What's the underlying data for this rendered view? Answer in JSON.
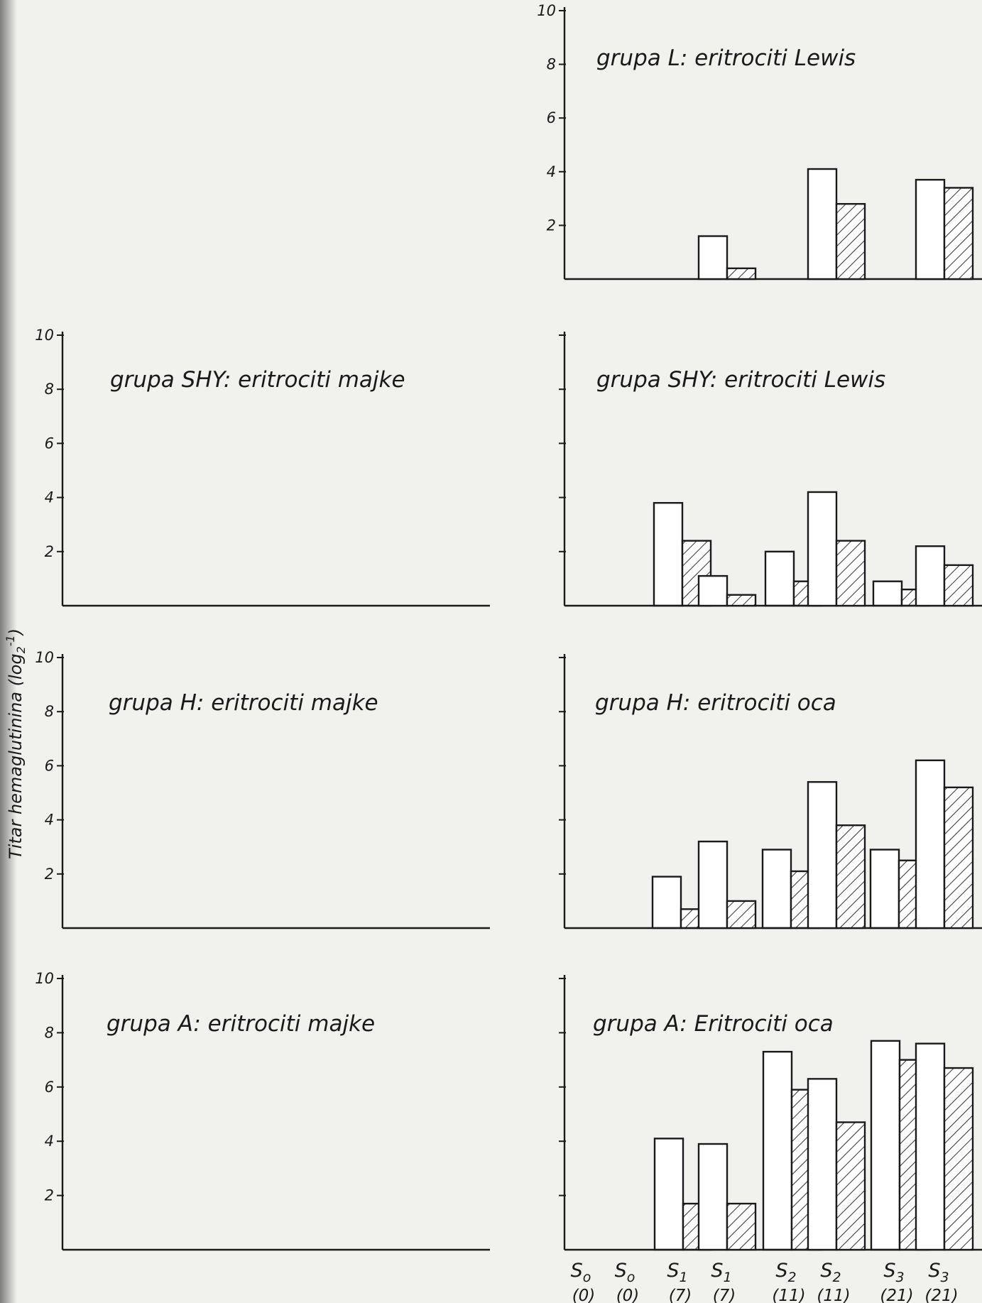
{
  "figure": {
    "ylabel": "Titar hemaglutinina (log",
    "ylabel_sub": "2",
    "ylabel_sup": "-1",
    "ylabel_close": ")"
  },
  "chart_data": [
    {
      "type": "bar",
      "title": "grupa L: eritrociti Lewis",
      "categories": [
        "So (0)",
        "S1 (7)",
        "S2 (11)",
        "S3 (21)"
      ],
      "ylim": [
        0,
        10
      ],
      "yticks": [
        2,
        4,
        6,
        8,
        10
      ],
      "tick_labels_shown": true,
      "series": [
        {
          "style": "open",
          "values": [
            0,
            1.6,
            4.1,
            3.7
          ]
        },
        {
          "style": "hatched",
          "values": [
            0,
            0.4,
            2.8,
            3.4
          ]
        }
      ]
    },
    {
      "type": "bar",
      "title": "grupa SHY: eritrociti majke",
      "categories": [
        "So (0)",
        "S1 (7)",
        "S2 (11)",
        "S3 (21)"
      ],
      "ylim": [
        0,
        10
      ],
      "yticks": [
        2,
        4,
        6,
        8,
        10
      ],
      "tick_labels_shown": true,
      "series": [
        {
          "style": "open",
          "values": [
            0,
            3.8,
            2.0,
            0.9
          ]
        },
        {
          "style": "hatched",
          "values": [
            0,
            2.4,
            0.9,
            0.6
          ]
        }
      ]
    },
    {
      "type": "bar",
      "title": "grupa SHY: eritrociti Lewis",
      "categories": [
        "So (0)",
        "S1 (7)",
        "S2 (11)",
        "S3 (21)"
      ],
      "ylim": [
        0,
        10
      ],
      "yticks": [
        2,
        4,
        6,
        8,
        10
      ],
      "tick_labels_shown": false,
      "series": [
        {
          "style": "open",
          "values": [
            0,
            1.1,
            4.2,
            2.2
          ]
        },
        {
          "style": "hatched",
          "values": [
            0,
            0.4,
            2.4,
            1.5
          ]
        }
      ]
    },
    {
      "type": "bar",
      "title": "grupa H: eritrociti majke",
      "categories": [
        "So (0)",
        "S1 (7)",
        "S2 (11)",
        "S3 (21)"
      ],
      "ylim": [
        0,
        10
      ],
      "yticks": [
        2,
        4,
        6,
        8,
        10
      ],
      "tick_labels_shown": true,
      "series": [
        {
          "style": "open",
          "values": [
            0,
            1.9,
            2.9,
            2.9
          ]
        },
        {
          "style": "hatched",
          "values": [
            0,
            0.7,
            2.1,
            2.5
          ]
        }
      ]
    },
    {
      "type": "bar",
      "title": "grupa H: eritrociti oca",
      "categories": [
        "So (0)",
        "S1 (7)",
        "S2 (11)",
        "S3 (21)"
      ],
      "ylim": [
        0,
        10
      ],
      "yticks": [
        2,
        4,
        6,
        8,
        10
      ],
      "tick_labels_shown": false,
      "series": [
        {
          "style": "open",
          "values": [
            0,
            3.2,
            5.4,
            6.2
          ]
        },
        {
          "style": "hatched",
          "values": [
            0,
            1.0,
            3.8,
            5.2
          ]
        }
      ]
    },
    {
      "type": "bar",
      "title": "grupa A: eritrociti majke",
      "categories": [
        "So (0)",
        "S1 (7)",
        "S2 (11)",
        "S3 (21)"
      ],
      "ylim": [
        0,
        10
      ],
      "yticks": [
        2,
        4,
        6,
        8,
        10
      ],
      "tick_labels_shown": true,
      "category_labels_shown": true,
      "series": [
        {
          "style": "open",
          "values": [
            0,
            4.1,
            7.3,
            7.7
          ]
        },
        {
          "style": "hatched",
          "values": [
            0,
            1.7,
            5.9,
            7.0
          ]
        }
      ]
    },
    {
      "type": "bar",
      "title": "grupa A: Eritrociti oca",
      "categories": [
        "So (0)",
        "S1 (7)",
        "S2 (11)",
        "S3 (21)"
      ],
      "ylim": [
        0,
        10
      ],
      "yticks": [
        2,
        4,
        6,
        8,
        10
      ],
      "tick_labels_shown": false,
      "category_labels_shown": true,
      "series": [
        {
          "style": "open",
          "values": [
            0,
            3.9,
            6.3,
            7.6
          ]
        },
        {
          "style": "hatched",
          "values": [
            0,
            1.7,
            4.7,
            6.7
          ]
        }
      ]
    }
  ],
  "category_axis": [
    {
      "name": "S",
      "sub": "o",
      "paren": "(0)"
    },
    {
      "name": "S",
      "sub": "1",
      "paren": "(7)"
    },
    {
      "name": "S",
      "sub": "2",
      "paren": "(11)"
    },
    {
      "name": "S",
      "sub": "3",
      "paren": "(21)"
    }
  ]
}
